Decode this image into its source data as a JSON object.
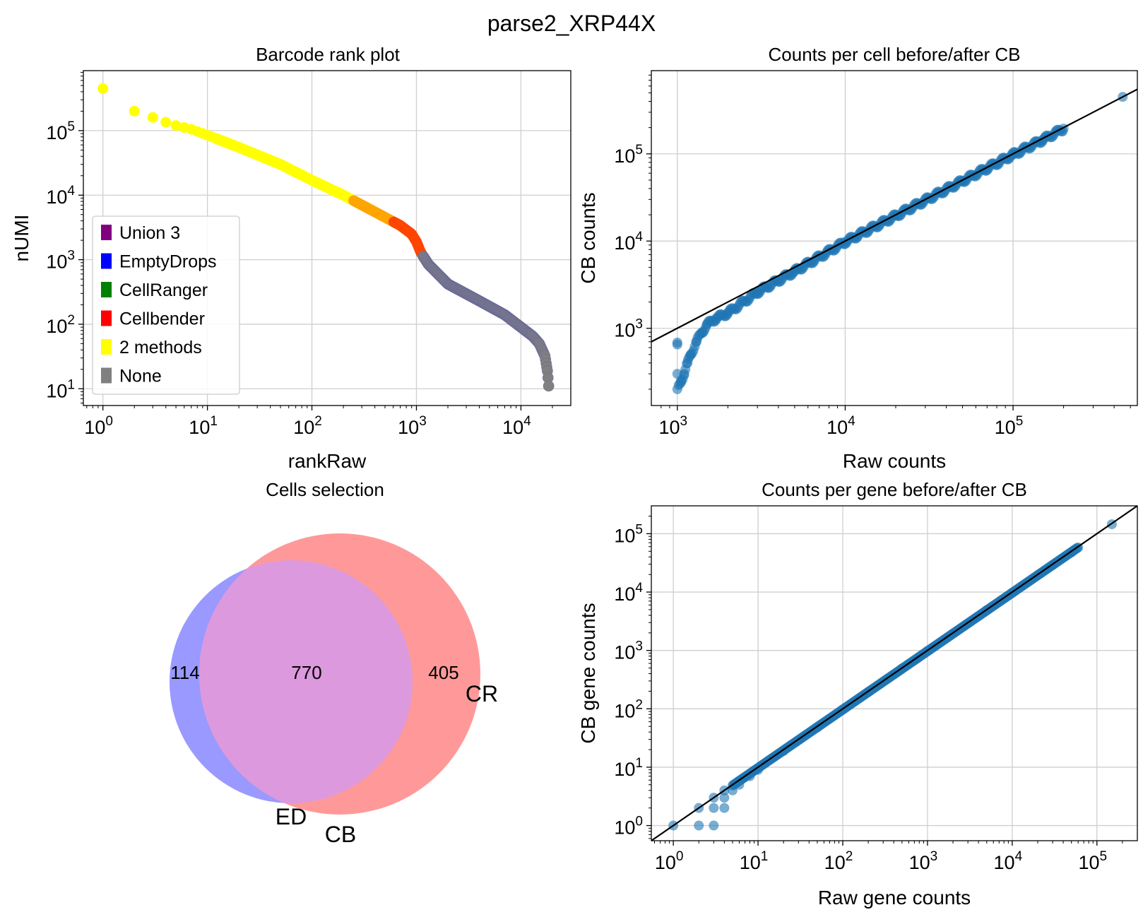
{
  "figure": {
    "title": "parse2_XRP44X"
  },
  "chart_data": [
    {
      "type": "scatter",
      "title": "Barcode rank plot",
      "xlabel": "rankRaw",
      "ylabel": "nUMI",
      "xscale": "log",
      "yscale": "log",
      "xlim": [
        0.65,
        30000
      ],
      "ylim": [
        5.5,
        850000
      ],
      "xticks": [
        {
          "value": 1,
          "base": "10",
          "exp": "0"
        },
        {
          "value": 10,
          "base": "10",
          "exp": "1"
        },
        {
          "value": 100,
          "base": "10",
          "exp": "2"
        },
        {
          "value": 1000,
          "base": "10",
          "exp": "3"
        },
        {
          "value": 10000,
          "base": "10",
          "exp": "4"
        }
      ],
      "yticks": [
        {
          "value": 10,
          "base": "10",
          "exp": "1"
        },
        {
          "value": 100,
          "base": "10",
          "exp": "2"
        },
        {
          "value": 1000,
          "base": "10",
          "exp": "3"
        },
        {
          "value": 10000,
          "base": "10",
          "exp": "4"
        },
        {
          "value": 100000,
          "base": "10",
          "exp": "5"
        }
      ],
      "grid": true,
      "legend": {
        "position": "lower-left",
        "entries": [
          {
            "label": "Union 3",
            "color": "#800080"
          },
          {
            "label": "EmptyDrops",
            "color": "#0000ff"
          },
          {
            "label": "CellRanger",
            "color": "#008000"
          },
          {
            "label": "Cellbender",
            "color": "#ff0000"
          },
          {
            "label": "2 methods",
            "color": "#ffff00"
          },
          {
            "label": "None",
            "color": "#808080"
          }
        ]
      },
      "curve": [
        [
          1,
          450000
        ],
        [
          2,
          200000
        ],
        [
          3,
          160000
        ],
        [
          4,
          135000
        ],
        [
          5,
          120000
        ],
        [
          7,
          105000
        ],
        [
          10,
          85000
        ],
        [
          20,
          55000
        ],
        [
          50,
          30000
        ],
        [
          100,
          17000
        ],
        [
          200,
          10000
        ],
        [
          400,
          5500
        ],
        [
          700,
          3400
        ],
        [
          900,
          2500
        ],
        [
          1000,
          1900
        ],
        [
          1100,
          1300
        ],
        [
          1300,
          850
        ],
        [
          2000,
          420
        ],
        [
          4000,
          230
        ],
        [
          7000,
          140
        ],
        [
          10000,
          90
        ],
        [
          13000,
          65
        ],
        [
          15000,
          50
        ],
        [
          17000,
          32
        ],
        [
          18000,
          18
        ],
        [
          18500,
          10
        ]
      ],
      "segments": [
        {
          "color": "#ffff00",
          "from_rank": 1,
          "to_rank": 250
        },
        {
          "color": "#ffa500",
          "from_rank": 250,
          "to_rank": 600
        },
        {
          "color": "#ff4500",
          "from_rank": 600,
          "to_rank": 1150
        },
        {
          "color": "#808080",
          "from_rank": 1150,
          "to_rank": 18500
        }
      ]
    },
    {
      "type": "scatter",
      "title": "Counts per cell before/after CB",
      "xlabel": "Raw counts",
      "ylabel": "CB counts",
      "xscale": "log",
      "yscale": "log",
      "xlim": [
        700,
        550000
      ],
      "ylim": [
        130,
        900000
      ],
      "xticks": [
        {
          "value": 1000,
          "base": "10",
          "exp": "3"
        },
        {
          "value": 10000,
          "base": "10",
          "exp": "4"
        },
        {
          "value": 100000,
          "base": "10",
          "exp": "5"
        }
      ],
      "yticks": [
        {
          "value": 1000,
          "base": "10",
          "exp": "3"
        },
        {
          "value": 10000,
          "base": "10",
          "exp": "4"
        },
        {
          "value": 100000,
          "base": "10",
          "exp": "5"
        }
      ],
      "grid": true,
      "point_color": "#1f77b4",
      "identity_line": true,
      "points": [
        [
          1000,
          650
        ],
        [
          1000,
          300
        ],
        [
          1000,
          200
        ],
        [
          1050,
          250
        ],
        [
          1100,
          300
        ],
        [
          1150,
          400
        ],
        [
          1200,
          500
        ],
        [
          1300,
          700
        ],
        [
          1400,
          900
        ],
        [
          1500,
          1100
        ],
        [
          1700,
          1300
        ],
        [
          2000,
          1500
        ],
        [
          3000,
          2600
        ],
        [
          5000,
          4500
        ],
        [
          10000,
          9800
        ],
        [
          20000,
          19500
        ],
        [
          50000,
          49000
        ],
        [
          100000,
          98000
        ],
        [
          150000,
          145000
        ],
        [
          200000,
          195000
        ],
        [
          450000,
          450000
        ]
      ]
    },
    {
      "type": "venn",
      "title": "Cells selection",
      "sets": [
        {
          "label": "ED",
          "color": "#9999ff"
        },
        {
          "label": "CB",
          "color": "#ff9999"
        },
        {
          "label": "CR",
          "color": "#ff9999"
        }
      ],
      "regions": [
        {
          "sets": [
            "ED"
          ],
          "value": 114
        },
        {
          "sets": [
            "ED",
            "CB"
          ],
          "value": 770
        },
        {
          "sets": [
            "CB"
          ],
          "value": 405
        }
      ]
    },
    {
      "type": "scatter",
      "title": "Counts per gene before/after CB",
      "xlabel": "Raw gene counts",
      "ylabel": "CB gene counts",
      "xscale": "log",
      "yscale": "log",
      "xlim": [
        0.55,
        300000
      ],
      "ylim": [
        0.55,
        300000
      ],
      "xticks": [
        {
          "value": 1,
          "base": "10",
          "exp": "0"
        },
        {
          "value": 10,
          "base": "10",
          "exp": "1"
        },
        {
          "value": 100,
          "base": "10",
          "exp": "2"
        },
        {
          "value": 1000,
          "base": "10",
          "exp": "3"
        },
        {
          "value": 10000,
          "base": "10",
          "exp": "4"
        },
        {
          "value": 100000,
          "base": "10",
          "exp": "5"
        }
      ],
      "yticks": [
        {
          "value": 1,
          "base": "10",
          "exp": "0"
        },
        {
          "value": 10,
          "base": "10",
          "exp": "1"
        },
        {
          "value": 100,
          "base": "10",
          "exp": "2"
        },
        {
          "value": 1000,
          "base": "10",
          "exp": "3"
        },
        {
          "value": 10000,
          "base": "10",
          "exp": "4"
        },
        {
          "value": 100000,
          "base": "10",
          "exp": "5"
        }
      ],
      "grid": true,
      "point_color": "#1f77b4",
      "identity_line": true,
      "points": [
        [
          1,
          1
        ],
        [
          2,
          1
        ],
        [
          2,
          2
        ],
        [
          3,
          1
        ],
        [
          3,
          2
        ],
        [
          3,
          3
        ],
        [
          4,
          2
        ],
        [
          4,
          3
        ],
        [
          4,
          4
        ],
        [
          5,
          4
        ],
        [
          6,
          5
        ],
        [
          8,
          7
        ],
        [
          10,
          9
        ],
        [
          20,
          19
        ],
        [
          50,
          48
        ],
        [
          100,
          97
        ],
        [
          200,
          195
        ],
        [
          500,
          490
        ],
        [
          1000,
          980
        ],
        [
          2000,
          1950
        ],
        [
          5000,
          4900
        ],
        [
          10000,
          9700
        ],
        [
          20000,
          19500
        ],
        [
          30000,
          29000
        ],
        [
          50000,
          48000
        ],
        [
          60000,
          58000
        ],
        [
          150000,
          145000
        ]
      ]
    }
  ]
}
